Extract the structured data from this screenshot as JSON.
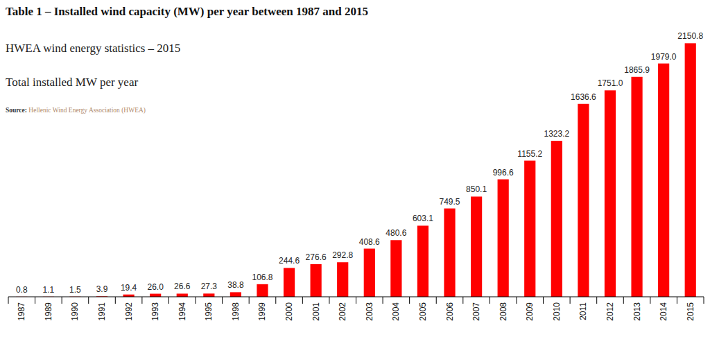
{
  "chart_data": {
    "type": "bar",
    "title": "Table 1 – Installed wind capacity (MW) per year between 1987 and 2015",
    "subtitle": "HWEA wind energy statistics – 2015",
    "annotations": [
      "Total installed MW per year",
      "Source: Hellenic Wind Energy Association (HWEA)"
    ],
    "categories": [
      "1987",
      "1989",
      "1990",
      "1991",
      "1992",
      "1993",
      "1994",
      "1995",
      "1998",
      "1999",
      "2000",
      "2001",
      "2002",
      "2003",
      "2004",
      "2005",
      "2006",
      "2007",
      "2008",
      "2009",
      "2010",
      "2011",
      "2012",
      "2013",
      "2014",
      "2015"
    ],
    "values": [
      0.8,
      1.1,
      1.5,
      3.9,
      19.4,
      26.0,
      26.6,
      27.3,
      38.8,
      106.8,
      244.6,
      276.6,
      292.8,
      408.6,
      480.6,
      603.1,
      749.5,
      850.1,
      996.6,
      1155.2,
      1323.2,
      1636.6,
      1751.0,
      1865.9,
      1979.0,
      2150.8
    ],
    "value_labels": [
      "0.8",
      "1.1",
      "1.5",
      "3.9",
      "19.4",
      "26.0",
      "26.6",
      "27.3",
      "38.8",
      "106.8",
      "244.6",
      "276.6",
      "292.8",
      "408.6",
      "480.6",
      "603.1",
      "749.5",
      "850.1",
      "996.6",
      "1155.2",
      "1323.2",
      "1636.6",
      "1751.0",
      "1865.9",
      "1979.0",
      "2150.8"
    ],
    "color": "#ff0000",
    "ylim": [
      0,
      2200
    ],
    "grid": false,
    "data_labels": true,
    "tick_labels": "x"
  }
}
